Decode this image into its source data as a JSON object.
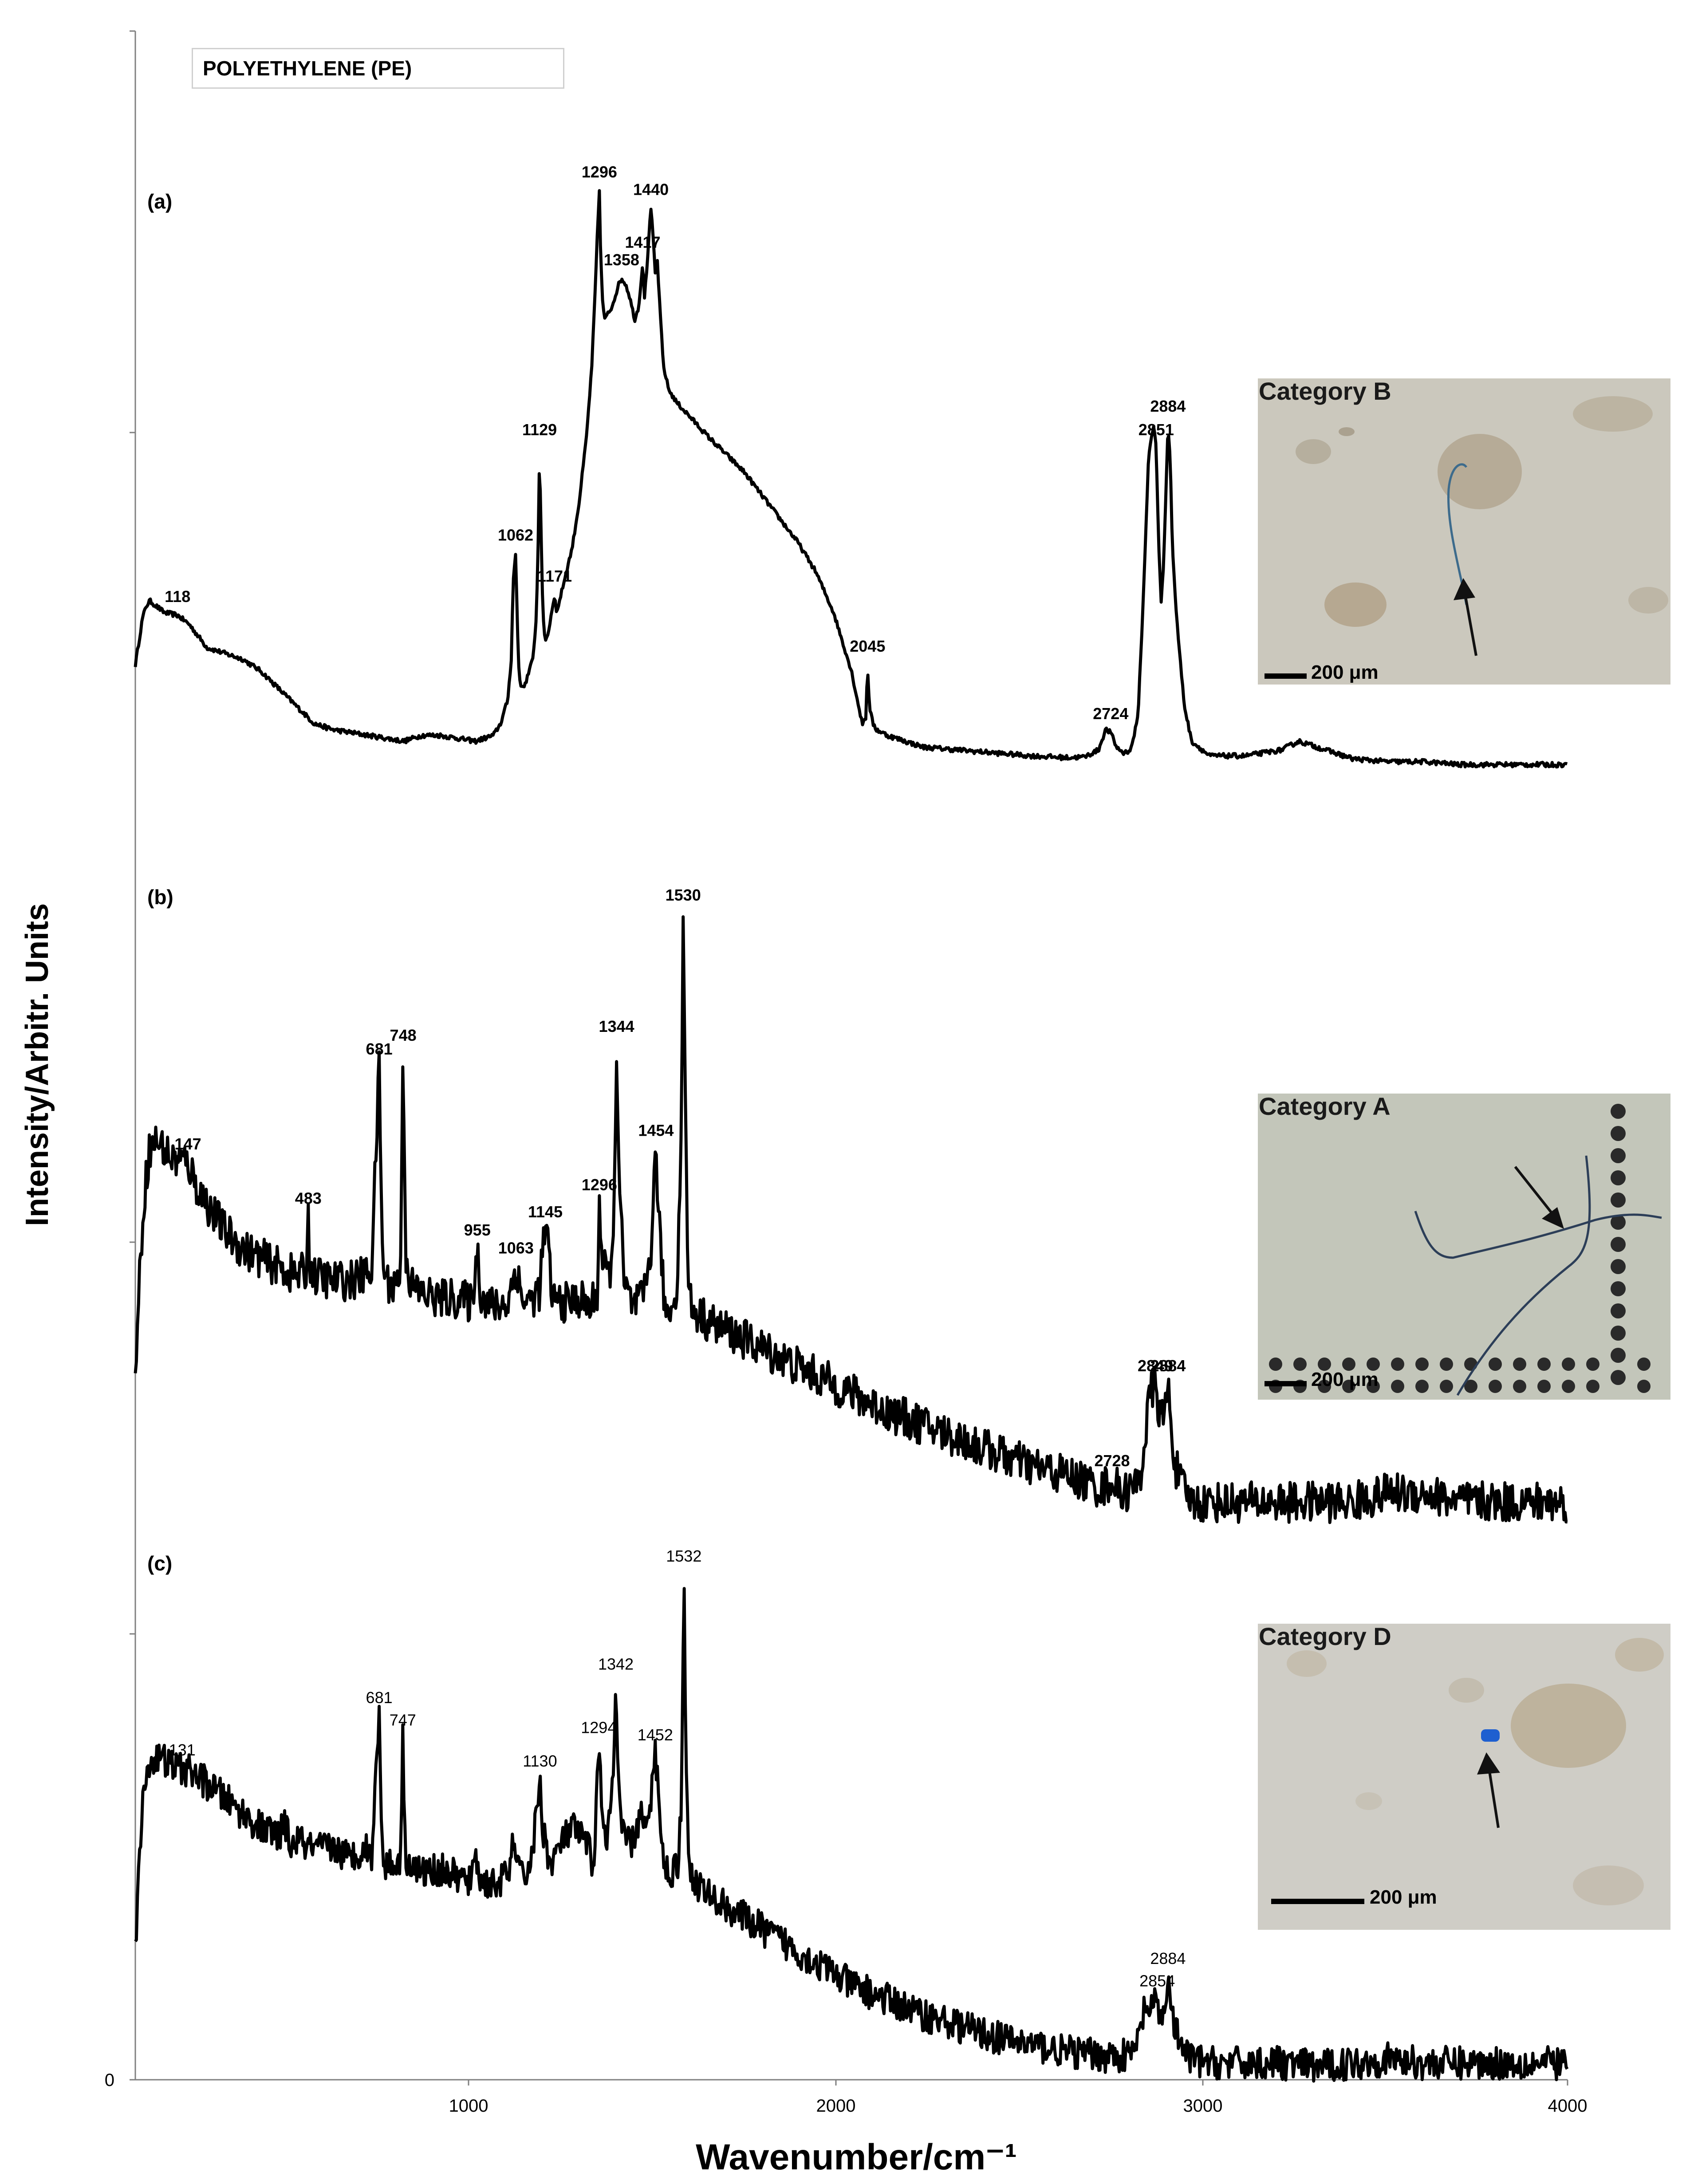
{
  "legend": {
    "text": "POLYETHYLENE (PE)"
  },
  "axes": {
    "ylabel": "Intensity/Arbitr. Units",
    "xlabel": "Wavenumber/cm⁻¹",
    "x_ticks": [
      "1000",
      "2000",
      "3000",
      "4000"
    ],
    "y_tick_zero": "0"
  },
  "chart_data": [
    {
      "panel": "(a)",
      "type": "line",
      "xlim": [
        0,
        4000
      ],
      "series": [
        {
          "x": [
            0,
            10,
            20,
            30,
            40,
            60,
            80,
            118,
            150,
            200,
            250,
            300,
            350,
            400,
            450,
            500,
            550,
            600,
            650,
            700,
            750,
            800,
            850,
            900,
            950,
            1000,
            1020,
            1040,
            1050,
            1055,
            1062,
            1068,
            1072,
            1080,
            1090,
            1100,
            1110,
            1120,
            1125,
            1129,
            1133,
            1138,
            1145,
            1155,
            1165,
            1171,
            1176,
            1185,
            1200,
            1220,
            1240,
            1260,
            1275,
            1285,
            1292,
            1296,
            1300,
            1306,
            1312,
            1320,
            1330,
            1340,
            1350,
            1358,
            1370,
            1380,
            1395,
            1405,
            1412,
            1417,
            1422,
            1428,
            1434,
            1440,
            1445,
            1452,
            1458,
            1465,
            1475,
            1490,
            1510,
            1540,
            1570,
            1600,
            1650,
            1700,
            1750,
            1800,
            1850,
            1900,
            1950,
            2000,
            2020,
            2030,
            2040,
            2045,
            2050,
            2060,
            2070,
            2100,
            2150,
            2200,
            2300,
            2400,
            2500,
            2600,
            2650,
            2690,
            2710,
            2724,
            2740,
            2760,
            2780,
            2800,
            2815,
            2830,
            2845,
            2851,
            2858,
            2865,
            2872,
            2878,
            2884,
            2890,
            2896,
            2905,
            2915,
            2930,
            2950,
            3000,
            3100,
            3200,
            3250,
            3300,
            3400,
            3500,
            3600,
            3700,
            3800,
            3900,
            4000
          ],
          "y": [
            0.19,
            0.23,
            0.27,
            0.29,
            0.3,
            0.29,
            0.28,
            0.275,
            0.26,
            0.22,
            0.21,
            0.2,
            0.18,
            0.15,
            0.12,
            0.09,
            0.08,
            0.075,
            0.07,
            0.065,
            0.06,
            0.07,
            0.07,
            0.065,
            0.06,
            0.07,
            0.09,
            0.13,
            0.2,
            0.33,
            0.38,
            0.24,
            0.17,
            0.15,
            0.16,
            0.18,
            0.2,
            0.27,
            0.4,
            0.56,
            0.42,
            0.28,
            0.23,
            0.25,
            0.29,
            0.31,
            0.28,
            0.3,
            0.34,
            0.39,
            0.47,
            0.58,
            0.7,
            0.84,
            0.95,
            1.0,
            0.88,
            0.8,
            0.78,
            0.79,
            0.8,
            0.82,
            0.84,
            0.85,
            0.84,
            0.82,
            0.78,
            0.8,
            0.84,
            0.88,
            0.82,
            0.86,
            0.92,
            0.97,
            0.93,
            0.86,
            0.88,
            0.8,
            0.7,
            0.66,
            0.64,
            0.62,
            0.6,
            0.58,
            0.55,
            0.52,
            0.48,
            0.44,
            0.4,
            0.35,
            0.28,
            0.18,
            0.12,
            0.09,
            0.1,
            0.19,
            0.12,
            0.09,
            0.08,
            0.07,
            0.06,
            0.05,
            0.045,
            0.04,
            0.035,
            0.032,
            0.033,
            0.045,
            0.08,
            0.075,
            0.05,
            0.04,
            0.045,
            0.1,
            0.3,
            0.55,
            0.6,
            0.56,
            0.4,
            0.3,
            0.36,
            0.48,
            0.6,
            0.55,
            0.4,
            0.3,
            0.22,
            0.12,
            0.06,
            0.035,
            0.035,
            0.045,
            0.06,
            0.05,
            0.03,
            0.025,
            0.025,
            0.02,
            0.02,
            0.02,
            0.02
          ]
        }
      ],
      "peak_labels": [
        118,
        1062,
        1129,
        1171,
        1296,
        1358,
        1417,
        1440,
        2045,
        2724,
        2851,
        2884
      ]
    },
    {
      "panel": "(b)",
      "type": "line",
      "xlim": [
        0,
        4000
      ],
      "series": [
        {
          "x": [
            0,
            10,
            20,
            30,
            40,
            60,
            80,
            100,
            147,
            170,
            200,
            250,
            300,
            350,
            400,
            450,
            478,
            483,
            488,
            500,
            550,
            600,
            640,
            660,
            681,
            690,
            700,
            720,
            740,
            748,
            756,
            770,
            800,
            850,
            900,
            940,
            955,
            965,
            1000,
            1040,
            1063,
            1080,
            1100,
            1130,
            1140,
            1145,
            1152,
            1165,
            1200,
            1240,
            1270,
            1290,
            1296,
            1305,
            1320,
            1335,
            1344,
            1352,
            1365,
            1390,
            1420,
            1440,
            1454,
            1465,
            1480,
            1500,
            1515,
            1525,
            1530,
            1536,
            1545,
            1560,
            1600,
            1700,
            1800,
            1900,
            2000,
            2100,
            2200,
            2300,
            2400,
            2500,
            2600,
            2700,
            2728,
            2750,
            2790,
            2810,
            2825,
            2835,
            2849,
            2860,
            2872,
            2884,
            2892,
            2905,
            2920,
            2950,
            3000,
            3100,
            3200,
            3300,
            3400,
            3500,
            3600,
            3700,
            3800,
            3900,
            4000
          ],
          "y": [
            0.0,
            0.16,
            0.32,
            0.42,
            0.48,
            0.5,
            0.48,
            0.46,
            0.45,
            0.4,
            0.36,
            0.3,
            0.26,
            0.24,
            0.22,
            0.2,
            0.21,
            0.33,
            0.22,
            0.2,
            0.19,
            0.19,
            0.2,
            0.22,
            0.66,
            0.25,
            0.19,
            0.18,
            0.2,
            0.69,
            0.24,
            0.18,
            0.16,
            0.15,
            0.15,
            0.14,
            0.26,
            0.16,
            0.13,
            0.14,
            0.22,
            0.15,
            0.14,
            0.17,
            0.28,
            0.3,
            0.27,
            0.15,
            0.14,
            0.15,
            0.13,
            0.16,
            0.36,
            0.22,
            0.2,
            0.25,
            0.71,
            0.4,
            0.18,
            0.13,
            0.15,
            0.26,
            0.48,
            0.28,
            0.12,
            0.13,
            0.2,
            0.55,
            1.0,
            0.58,
            0.16,
            0.12,
            0.1,
            0.06,
            0.02,
            -0.02,
            -0.06,
            -0.1,
            -0.13,
            -0.16,
            -0.19,
            -0.22,
            -0.24,
            -0.27,
            -0.25,
            -0.28,
            -0.27,
            -0.23,
            -0.12,
            -0.06,
            -0.04,
            -0.1,
            -0.12,
            -0.04,
            -0.12,
            -0.22,
            -0.26,
            -0.3,
            -0.3,
            -0.3,
            -0.3,
            -0.3,
            -0.3,
            -0.28,
            -0.28,
            -0.3,
            -0.3,
            -0.3,
            -0.3
          ]
        }
      ],
      "peak_labels": [
        147,
        483,
        681,
        748,
        955,
        1063,
        1145,
        1296,
        1344,
        1454,
        1530,
        2728,
        2849,
        2884
      ]
    },
    {
      "panel": "(c)",
      "type": "line",
      "xlim": [
        0,
        4000
      ],
      "series": [
        {
          "x": [
            0,
            10,
            20,
            30,
            40,
            60,
            80,
            100,
            131,
            160,
            200,
            250,
            300,
            350,
            400,
            420,
            430,
            440,
            450,
            500,
            550,
            600,
            640,
            660,
            681,
            690,
            700,
            720,
            740,
            747,
            754,
            770,
            800,
            850,
            900,
            940,
            950,
            960,
            1000,
            1040,
            1060,
            1070,
            1090,
            1110,
            1130,
            1136,
            1142,
            1160,
            1190,
            1220,
            1260,
            1280,
            1294,
            1305,
            1320,
            1335,
            1342,
            1350,
            1360,
            1390,
            1410,
            1420,
            1430,
            1440,
            1452,
            1462,
            1475,
            1495,
            1515,
            1525,
            1532,
            1538,
            1545,
            1560,
            1600,
            1700,
            1800,
            1900,
            2000,
            2100,
            2200,
            2300,
            2400,
            2500,
            2600,
            2700,
            2780,
            2805,
            2820,
            2835,
            2854,
            2863,
            2872,
            2884,
            2892,
            2905,
            2920,
            2950,
            3000,
            3100,
            3200,
            3300,
            3400,
            3500,
            3600,
            3700,
            3800,
            3900,
            4000
          ],
          "y": [
            0.0,
            0.2,
            0.38,
            0.46,
            0.5,
            0.51,
            0.5,
            0.49,
            0.48,
            0.47,
            0.44,
            0.4,
            0.36,
            0.32,
            0.3,
            0.33,
            0.28,
            0.27,
            0.29,
            0.26,
            0.27,
            0.24,
            0.27,
            0.25,
            0.62,
            0.27,
            0.22,
            0.22,
            0.24,
            0.56,
            0.25,
            0.22,
            0.2,
            0.21,
            0.19,
            0.17,
            0.28,
            0.18,
            0.17,
            0.19,
            0.3,
            0.2,
            0.19,
            0.26,
            0.45,
            0.34,
            0.3,
            0.22,
            0.28,
            0.32,
            0.28,
            0.22,
            0.54,
            0.34,
            0.3,
            0.45,
            0.71,
            0.42,
            0.3,
            0.28,
            0.36,
            0.34,
            0.3,
            0.4,
            0.52,
            0.42,
            0.22,
            0.2,
            0.22,
            0.4,
            1.0,
            0.54,
            0.22,
            0.18,
            0.14,
            0.08,
            0.02,
            -0.04,
            -0.1,
            -0.14,
            -0.18,
            -0.21,
            -0.24,
            -0.26,
            -0.28,
            -0.29,
            -0.29,
            -0.24,
            -0.15,
            -0.18,
            -0.14,
            -0.2,
            -0.18,
            -0.08,
            -0.16,
            -0.22,
            -0.27,
            -0.3,
            -0.31,
            -0.31,
            -0.31,
            -0.32,
            -0.31,
            -0.3,
            -0.31,
            -0.31,
            -0.31,
            -0.31,
            -0.31
          ]
        }
      ],
      "peak_labels": [
        131,
        681,
        747,
        1130,
        1294,
        1342,
        1452,
        1532,
        2854,
        2884
      ]
    }
  ],
  "insets": [
    {
      "title": "Category B",
      "scale": "200 μm",
      "bg": "#cbc8bd"
    },
    {
      "title": "Category A",
      "scale": "200 μm",
      "bg": "#c3c6ba"
    },
    {
      "title": "Category D",
      "scale": "200 μm",
      "bg": "#cfcdc6"
    }
  ]
}
